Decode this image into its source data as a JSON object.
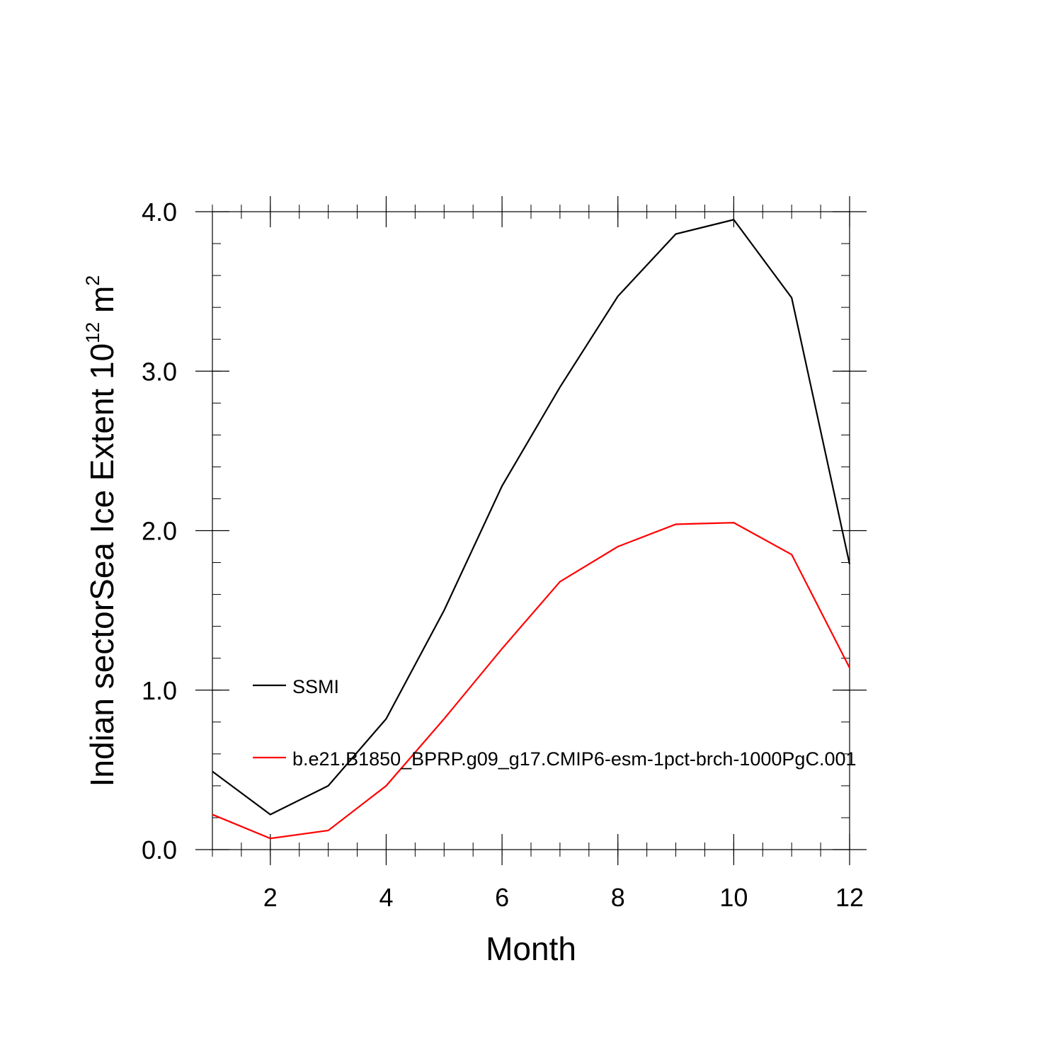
{
  "chart_data": {
    "type": "line",
    "xlabel": "Month",
    "ylabel_main": "Indian sectorSea Ice Extent 10",
    "ylabel_exp": "12",
    "ylabel_unit": " m",
    "ylabel_unit_exp": "2",
    "xlim": [
      1,
      12
    ],
    "ylim": [
      0,
      4
    ],
    "x_ticks": [
      2,
      4,
      6,
      8,
      10,
      12
    ],
    "x_tick_labels": [
      "2",
      "4",
      "6",
      "8",
      "10",
      "12"
    ],
    "y_ticks": [
      0,
      1,
      2,
      3,
      4
    ],
    "y_tick_labels": [
      "0.0",
      "1.0",
      "2.0",
      "3.0",
      "4.0"
    ],
    "x": [
      1,
      2,
      3,
      4,
      5,
      6,
      7,
      8,
      9,
      10,
      11,
      12
    ],
    "series": [
      {
        "name": "SSMI",
        "color": "#000000",
        "values": [
          0.49,
          0.22,
          0.4,
          0.82,
          1.5,
          2.28,
          2.9,
          3.47,
          3.86,
          3.95,
          3.46,
          1.79
        ]
      },
      {
        "name": "b.e21.B1850_BPRP.g09_g17.CMIP6-esm-1pct-brch-1000PgC.001",
        "color": "#ff0000",
        "values": [
          0.22,
          0.07,
          0.12,
          0.4,
          0.82,
          1.26,
          1.68,
          1.9,
          2.04,
          2.05,
          1.85,
          1.14
        ]
      }
    ],
    "legend_position": "inside-left"
  }
}
